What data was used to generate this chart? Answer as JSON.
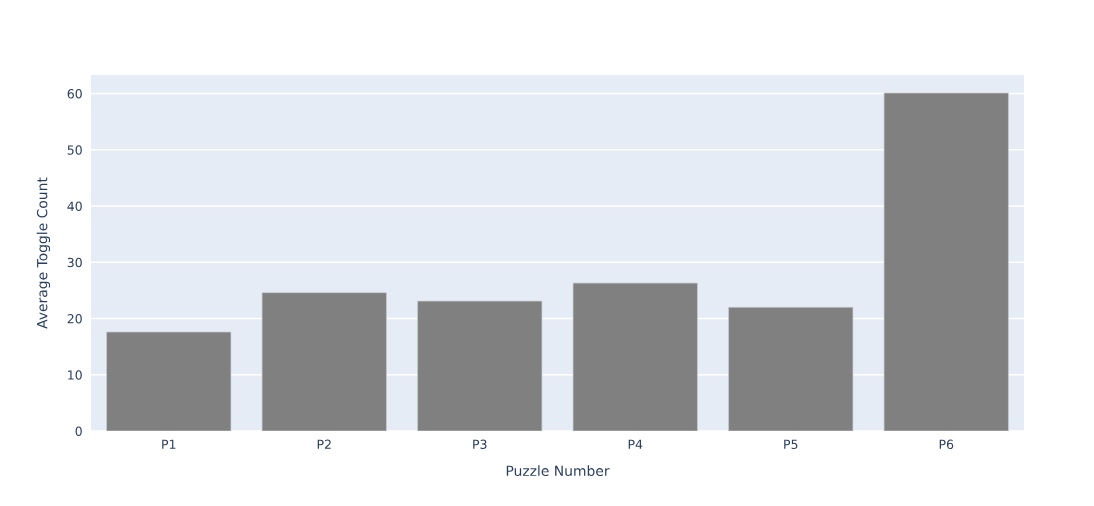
{
  "chart_data": {
    "type": "bar",
    "xlabel": "Puzzle Number",
    "ylabel": "Average Toggle Count",
    "categories": [
      "P1",
      "P2",
      "P3",
      "P4",
      "P5",
      "P6"
    ],
    "values": [
      17.6,
      24.6,
      23.1,
      26.3,
      22.0,
      60.1
    ],
    "color": "#808080",
    "ylim": [
      0,
      63.3
    ],
    "yticks": [
      0,
      10,
      20,
      30,
      40,
      50,
      60
    ],
    "grid": "y"
  }
}
